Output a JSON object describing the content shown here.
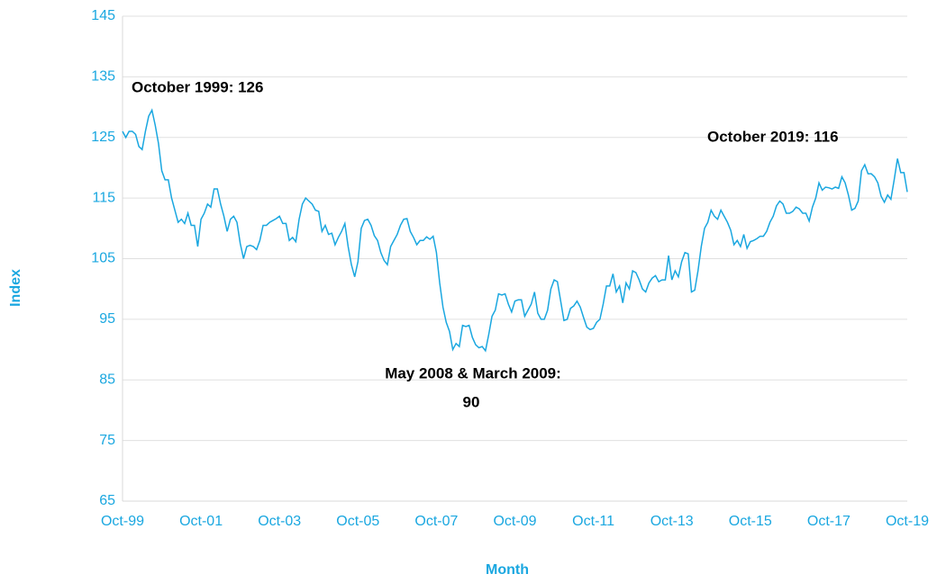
{
  "chart_data": {
    "type": "line",
    "xlabel": "Month",
    "ylabel": "Index",
    "annotations": [
      [
        "October 1999: 126"
      ],
      [
        "October 2019: 116"
      ],
      [
        "May 2008 & March 2009:",
        "90"
      ]
    ],
    "categories": [
      "Oct-99",
      null,
      null,
      null,
      null,
      null,
      null,
      null,
      null,
      null,
      null,
      null,
      null,
      null,
      null,
      null,
      null,
      null,
      null,
      null,
      null,
      null,
      null,
      null,
      "Oct-01",
      null,
      null,
      null,
      null,
      null,
      null,
      null,
      null,
      null,
      null,
      null,
      null,
      null,
      null,
      null,
      null,
      null,
      null,
      null,
      null,
      null,
      null,
      null,
      "Oct-03",
      null,
      null,
      null,
      null,
      null,
      null,
      null,
      null,
      null,
      null,
      null,
      null,
      null,
      null,
      null,
      null,
      null,
      null,
      null,
      null,
      null,
      null,
      null,
      "Oct-05",
      null,
      null,
      null,
      null,
      null,
      null,
      null,
      null,
      null,
      null,
      null,
      null,
      null,
      null,
      null,
      null,
      null,
      null,
      null,
      null,
      null,
      null,
      null,
      "Oct-07",
      null,
      null,
      null,
      null,
      null,
      null,
      null,
      null,
      null,
      null,
      null,
      null,
      null,
      null,
      null,
      null,
      null,
      null,
      null,
      null,
      null,
      null,
      null,
      "Oct-09",
      null,
      null,
      null,
      null,
      null,
      null,
      null,
      null,
      null,
      null,
      null,
      null,
      null,
      null,
      null,
      null,
      null,
      null,
      null,
      null,
      null,
      null,
      null,
      "Oct-11",
      null,
      null,
      null,
      null,
      null,
      null,
      null,
      null,
      null,
      null,
      null,
      null,
      null,
      null,
      null,
      null,
      null,
      null,
      null,
      null,
      null,
      null,
      null,
      "Oct-13",
      null,
      null,
      null,
      null,
      null,
      null,
      null,
      null,
      null,
      null,
      null,
      null,
      null,
      null,
      null,
      null,
      null,
      null,
      null,
      null,
      null,
      null,
      null,
      "Oct-15",
      null,
      null,
      null,
      null,
      null,
      null,
      null,
      null,
      null,
      null,
      null,
      null,
      null,
      null,
      null,
      null,
      null,
      null,
      null,
      null,
      null,
      null,
      null,
      "Oct-17",
      null,
      null,
      null,
      null,
      null,
      null,
      null,
      null,
      null,
      null,
      null,
      null,
      null,
      null,
      null,
      null,
      null,
      null,
      null,
      null,
      null,
      null,
      null,
      "Oct-19"
    ],
    "series": [
      {
        "name": "Index",
        "color": "#1aa7e0",
        "values": [
          126,
          125,
          126,
          126,
          125.5,
          123.5,
          123,
          126,
          128.5,
          129.5,
          127,
          124,
          119.5,
          118,
          118,
          115,
          113,
          111,
          111.5,
          110.8,
          112.5,
          110.5,
          110.5,
          107,
          111.5,
          112.5,
          114,
          113.5,
          116.5,
          116.5,
          114,
          112,
          109.5,
          111.5,
          112,
          111,
          107.5,
          105,
          107,
          107.2,
          107,
          106.5,
          108,
          110.5,
          110.5,
          111,
          111.3,
          111.6,
          112,
          110.8,
          110.8,
          108,
          108.5,
          107.8,
          111.5,
          114,
          115,
          114.5,
          114,
          113,
          112.8,
          109.5,
          110.5,
          109,
          109.2,
          107.3,
          108.5,
          109.5,
          110.8,
          107,
          104,
          102,
          104.5,
          110,
          111.3,
          111.5,
          110.5,
          108.8,
          108,
          106,
          104.7,
          104,
          107,
          108,
          109,
          110.5,
          111.5,
          111.6,
          109.5,
          108.5,
          107.3,
          108,
          108,
          108.6,
          108.2,
          108.7,
          106,
          101,
          97,
          94.5,
          93,
          90,
          91,
          90.5,
          94,
          93.8,
          94,
          92,
          90.8,
          90.3,
          90.5,
          89.8,
          92.5,
          95.5,
          96.5,
          99.2,
          99,
          99.2,
          97.5,
          96.2,
          98,
          98.2,
          98.2,
          95.5,
          96.5,
          97.5,
          99.5,
          96,
          95,
          95,
          96.5,
          100,
          101.5,
          101.2,
          98,
          94.8,
          95,
          96.8,
          97.2,
          98,
          97,
          95.3,
          93.7,
          93.3,
          93.5,
          94.5,
          95,
          97.5,
          100.5,
          100.5,
          102.5,
          99.5,
          100.5,
          97.7,
          101,
          100,
          103,
          102.7,
          101.5,
          100,
          99.5,
          101,
          101.8,
          102.2,
          101.2,
          101.5,
          101.5,
          105.5,
          101.5,
          103,
          102,
          104.5,
          106,
          105.8,
          99.5,
          99.8,
          103,
          107,
          110,
          111,
          113,
          112,
          111.5,
          113,
          112,
          111,
          109.7,
          107.3,
          108,
          107,
          109,
          106.7,
          107.8,
          108,
          108.3,
          108.7,
          108.7,
          109.5,
          111,
          112,
          113.7,
          114.5,
          114,
          112.5,
          112.5,
          112.8,
          113.5,
          113.2,
          112.5,
          112.5,
          111.2,
          113.5,
          115,
          117.5,
          116.3,
          116.8,
          116.7,
          116.5,
          116.8,
          116.6,
          118.5,
          117.5,
          115.5,
          113,
          113.3,
          114.5,
          119.5,
          120.5,
          119,
          119,
          118.5,
          117.5,
          115.3,
          114.3,
          115.5,
          114.8,
          118,
          121.5,
          119.2,
          119.2,
          116
        ]
      }
    ],
    "ylim": [
      65,
      145
    ],
    "yticks": [
      65,
      75,
      85,
      95,
      105,
      115,
      125,
      135,
      145
    ],
    "grid": true,
    "label_color": "#1aa7e0"
  }
}
